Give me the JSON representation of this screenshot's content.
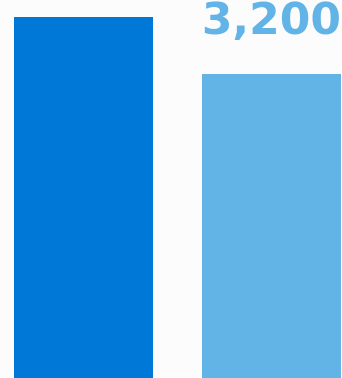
{
  "colors": {
    "background": "#fcfcfc",
    "bar_primary": "#0078d7",
    "bar_secondary": "#62b4e6",
    "label": "#62b4e6"
  },
  "chart_data": {
    "type": "bar",
    "title": "",
    "xlabel": "",
    "ylabel": "",
    "grid": false,
    "series": [
      {
        "values": [
          3800,
          3200
        ]
      }
    ],
    "data_labels": [
      "",
      "3,200"
    ]
  }
}
